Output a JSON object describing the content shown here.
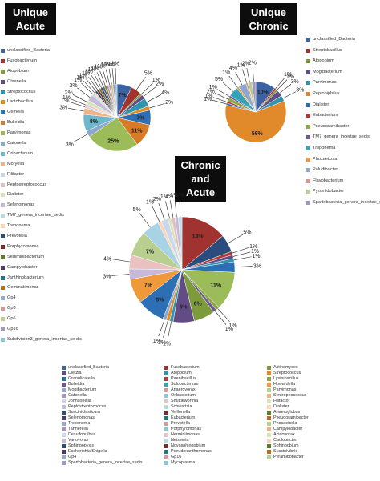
{
  "chart_data": [
    {
      "type": "pie",
      "title": "Unique Acute",
      "slices": [
        {
          "label": "unclassified_Bacteria",
          "value": 7,
          "text": "7%",
          "color": "#3b62a3"
        },
        {
          "label": "Fusobacterium",
          "value": 5,
          "text": "5%",
          "color": "#a0322f"
        },
        {
          "label": "Atopobium",
          "value": 1,
          "text": "1%",
          "color": "#7c9b3a"
        },
        {
          "label": "Olsenella",
          "value": 2,
          "text": "2%",
          "color": "#634b85"
        },
        {
          "label": "Streptococcus",
          "value": 4,
          "text": "4%",
          "color": "#2f95ad"
        },
        {
          "label": "Lactobacillus",
          "value": 2,
          "text": "2%",
          "color": "#e08a2c"
        },
        {
          "label": "Gemella",
          "value": 7,
          "text": "7%",
          "color": "#2d6fb4"
        },
        {
          "label": "Bulleidia",
          "value": 11,
          "text": "11%",
          "color": "#d87b27"
        },
        {
          "label": "Parvimonas",
          "value": 25,
          "text": "25%",
          "color": "#9cbc59"
        },
        {
          "label": "Catonella",
          "value": 3,
          "text": "3%",
          "color": "#8ea6c9"
        },
        {
          "label": "Oribacterium",
          "value": 8,
          "text": "8%",
          "color": "#6fb7cd"
        },
        {
          "label": "Moryella",
          "value": 3,
          "text": "3%",
          "color": "#f4b183"
        },
        {
          "label": "Filifactor",
          "value": 1,
          "text": "1%",
          "color": "#c8d7ec"
        },
        {
          "label": "Peptostreptococcus",
          "value": 1,
          "text": "1%",
          "color": "#e8c1c0"
        },
        {
          "label": "Dialister",
          "value": 2,
          "text": "2%",
          "color": "#d8e4bc"
        },
        {
          "label": "Selenomonas",
          "value": 3,
          "text": "3%",
          "color": "#c7b9da"
        },
        {
          "label": "TM7_genera_incertae_sedis",
          "value": 1,
          "text": "1%",
          "color": "#b6dde8"
        },
        {
          "label": "Treponema",
          "value": 1,
          "text": "1%",
          "color": "#fcd5b4"
        },
        {
          "label": "Prevotella",
          "value": 1,
          "text": "1%",
          "color": "#2a4d7e"
        },
        {
          "label": "Porphyromonas",
          "value": 1,
          "text": "1%",
          "color": "#7f2a27"
        },
        {
          "label": "Sediminibacterium",
          "value": 1,
          "text": "1%",
          "color": "#5e7a2c"
        },
        {
          "label": "Campylobacter",
          "value": 1,
          "text": "1%",
          "color": "#4c3a68"
        },
        {
          "label": "Janthinobacterium",
          "value": 1,
          "text": "1%",
          "color": "#257489"
        },
        {
          "label": "Gemmatimonas",
          "value": 1,
          "text": "1%",
          "color": "#b86d1f"
        },
        {
          "label": "Gp4",
          "value": 1,
          "text": "1%",
          "color": "#94a9cf"
        },
        {
          "label": "Gp3",
          "value": 1,
          "text": "1%",
          "color": "#d49a98"
        },
        {
          "label": "Gp6",
          "value": 1,
          "text": "1%",
          "color": "#b9cf8f"
        },
        {
          "label": "Gp16",
          "value": 1,
          "text": "1%",
          "color": "#a596bd"
        },
        {
          "label": "Subdivision3_genera_incertae_sedis",
          "value": 1,
          "text": "1%",
          "color": "#8fc6d6"
        }
      ]
    },
    {
      "type": "pie",
      "title": "Unique Chronic",
      "slices": [
        {
          "label": "unclassified_Bacteria",
          "value": 10,
          "text": "10%",
          "color": "#3b62a3"
        },
        {
          "label": "Streptobacillus",
          "value": 1,
          "text": "1%",
          "color": "#a0322f"
        },
        {
          "label": "Atopobium",
          "value": 1,
          "text": "1%",
          "color": "#7c9b3a"
        },
        {
          "label": "Mogibacterium",
          "value": 3,
          "text": "3%",
          "color": "#634b85"
        },
        {
          "label": "Parvimonas",
          "value": 3,
          "text": "3%",
          "color": "#2f95ad"
        },
        {
          "label": "Peptoniphilus",
          "value": 56,
          "text": "56%",
          "color": "#e08a2c"
        },
        {
          "label": "Dialister",
          "value": 1,
          "text": "1%",
          "color": "#2d6fb4"
        },
        {
          "label": "Eubacterium",
          "value": 1,
          "text": "1%",
          "color": "#b33a36"
        },
        {
          "label": "Pseudoramibacter",
          "value": 2,
          "text": "2%",
          "color": "#8aa944"
        },
        {
          "label": "TM7_genera_incertae_sedis",
          "value": 1,
          "text": "1%",
          "color": "#715796"
        },
        {
          "label": "Treponema",
          "value": 5,
          "text": "5%",
          "color": "#36a3bd"
        },
        {
          "label": "Phocaeicola",
          "value": 1,
          "text": "1%",
          "color": "#f0993a"
        },
        {
          "label": "Paludibacter",
          "value": 4,
          "text": "4%",
          "color": "#8ea6c9"
        },
        {
          "label": "Flavobacterium",
          "value": 1,
          "text": "1%",
          "color": "#d49a98"
        },
        {
          "label": "Pyramidobacter",
          "value": 2,
          "text": "2%",
          "color": "#b9cf8f"
        },
        {
          "label": "Spartobacteria_genera_incertae_sedis",
          "value": 2,
          "text": "2%",
          "color": "#a596bd"
        }
      ]
    },
    {
      "type": "pie",
      "title": "Chronic and Acute",
      "slices": [
        {
          "label": "unclassified_Bacteria",
          "value": 13,
          "text": "13%",
          "color": "#a0322f"
        },
        {
          "label": "Fusobacterium",
          "value": 5,
          "text": "5%",
          "color": "#2a4d7e"
        },
        {
          "label": "Actinomyces",
          "value": 1,
          "text": "1%",
          "color": "#b33a36"
        },
        {
          "label": "Dietzia",
          "value": 1,
          "text": "1%",
          "color": "#634b85"
        },
        {
          "label": "Atopobium",
          "value": 1,
          "text": "1%",
          "color": "#2f95ad"
        },
        {
          "label": "Streptococcus",
          "value": 3,
          "text": "3%",
          "color": "#2d6fb4"
        },
        {
          "label": "Granulicatella",
          "value": 11,
          "text": "11%",
          "color": "#9cbc59"
        },
        {
          "label": "Paenibacillus",
          "value": 1,
          "text": "1%",
          "color": "#8aa944"
        },
        {
          "label": "Lysinibacillus",
          "value": 1,
          "text": "1%",
          "color": "#715796"
        },
        {
          "label": "Bulleidia",
          "value": 6,
          "text": "6%",
          "color": "#7c9b3a"
        },
        {
          "label": "Solobacterium",
          "value": 6,
          "text": "6%",
          "color": "#634b85"
        },
        {
          "label": "Howardella",
          "value": 1,
          "text": "1%",
          "color": "#2f95ad"
        },
        {
          "label": "Mogibacterium",
          "value": 1,
          "text": "1%",
          "color": "#e08a2c"
        },
        {
          "label": "Anaerovorax",
          "value": 1,
          "text": "1%",
          "color": "#8ea6c9"
        },
        {
          "label": "Parvimonas",
          "value": 8,
          "text": "8%",
          "color": "#2d6fb4"
        },
        {
          "label": "Catonella",
          "value": 7,
          "text": "7%",
          "color": "#f0993a"
        },
        {
          "label": "Oribacterium",
          "value": 3,
          "text": "3%",
          "color": "#c7b9da"
        },
        {
          "label": "Syntrophococcus",
          "value": 4,
          "text": "4%",
          "color": "#e8c1c0"
        },
        {
          "label": "Johnsonella",
          "value": 7,
          "text": "7%",
          "color": "#b9cf8f"
        },
        {
          "label": "Shuttleworthia",
          "value": 5,
          "text": "5%",
          "color": "#a7d3e4"
        },
        {
          "label": "Filifactor",
          "value": 1,
          "text": "1%",
          "color": "#fcd5b4"
        },
        {
          "label": "Peptostreptococcus",
          "value": 2,
          "text": "2%",
          "color": "#c8d7ec"
        },
        {
          "label": "Schwartzia",
          "value": 1,
          "text": "1%",
          "color": "#d8e4bc"
        },
        {
          "label": "Dialister",
          "value": 1,
          "text": "1%",
          "color": "#e3c0bf"
        },
        {
          "label": "Succiniclasticum",
          "value": 1,
          "text": "1%",
          "color": "#c5bad7"
        },
        {
          "label": "Veillonella",
          "value": 1,
          "text": "1%",
          "color": "#b6dde8"
        }
      ]
    }
  ],
  "titles": {
    "unique_acute": [
      "Unique",
      "Acute"
    ],
    "unique_chronic": [
      "Unique",
      "Chronic"
    ],
    "chronic_acute": [
      "Chronic",
      "and",
      "Acute"
    ]
  },
  "legend_acute": [
    {
      "label": "unclassified_Bacteria",
      "color": "#3b62a3"
    },
    {
      "label": "Fusobacterium",
      "color": "#a0322f"
    },
    {
      "label": "Atopobium",
      "color": "#7c9b3a"
    },
    {
      "label": "Olsenella",
      "color": "#634b85"
    },
    {
      "label": "Streptococcus",
      "color": "#2f95ad"
    },
    {
      "label": "Lactobacillus",
      "color": "#e08a2c"
    },
    {
      "label": "Gemella",
      "color": "#2d6fb4"
    },
    {
      "label": "Bulleidia",
      "color": "#d87b27"
    },
    {
      "label": "Parvimonas",
      "color": "#9cbc59"
    },
    {
      "label": "Catonella",
      "color": "#8ea6c9"
    },
    {
      "label": "Oribacterium",
      "color": "#6fb7cd"
    },
    {
      "label": "Moryella",
      "color": "#f4b183"
    },
    {
      "label": "Filifactor",
      "color": "#c8d7ec"
    },
    {
      "label": "Peptostreptococcus",
      "color": "#e8c1c0"
    },
    {
      "label": "Dialister",
      "color": "#d8e4bc"
    },
    {
      "label": "Selenomonas",
      "color": "#c7b9da"
    },
    {
      "label": "TM7_genera_incertae_sedis",
      "color": "#b6dde8"
    },
    {
      "label": "Treponema",
      "color": "#fcd5b4"
    },
    {
      "label": "Prevotella",
      "color": "#2a4d7e"
    },
    {
      "label": "Porphyromonas",
      "color": "#7f2a27"
    },
    {
      "label": "Sediminibacterium",
      "color": "#5e7a2c"
    },
    {
      "label": "Campylobacter",
      "color": "#4c3a68"
    },
    {
      "label": "Janthinobacterium",
      "color": "#257489"
    },
    {
      "label": "Gemmatimonas",
      "color": "#b86d1f"
    },
    {
      "label": "Gp4",
      "color": "#94a9cf"
    },
    {
      "label": "Gp3",
      "color": "#d49a98"
    },
    {
      "label": "Gp6",
      "color": "#b9cf8f"
    },
    {
      "label": "Gp16",
      "color": "#a596bd"
    },
    {
      "label": "Subdivision3_genera_incertae_se dis",
      "color": "#8fc6d6"
    }
  ],
  "legend_chronic": [
    {
      "label": "unclassified_Bacteria",
      "color": "#3b62a3"
    },
    {
      "label": "Streptobacillus",
      "color": "#a0322f"
    },
    {
      "label": "Atopobium",
      "color": "#7c9b3a"
    },
    {
      "label": "Mogibacterium",
      "color": "#634b85"
    },
    {
      "label": "Parvimonas",
      "color": "#2f95ad"
    },
    {
      "label": "Peptoniphilus",
      "color": "#e08a2c"
    },
    {
      "label": "Dialister",
      "color": "#2d6fb4"
    },
    {
      "label": "Eubacterium",
      "color": "#b33a36"
    },
    {
      "label": "Pseudoramibacter",
      "color": "#8aa944"
    },
    {
      "label": "TM7_genera_incertae_sedis",
      "color": "#715796"
    },
    {
      "label": "Treponema",
      "color": "#36a3bd"
    },
    {
      "label": "Phocaeicola",
      "color": "#f0993a"
    },
    {
      "label": "Paludibacter",
      "color": "#8ea6c9"
    },
    {
      "label": "Flavobacterium",
      "color": "#d49a98"
    },
    {
      "label": "Pyramidobacter",
      "color": "#b9cf8f"
    },
    {
      "label": "Spartobacteria_genera_incertae_sedis",
      "color": "#a596bd"
    }
  ],
  "legend_bottom": [
    {
      "label": "unclassified_Bacteria",
      "color": "#3b62a3"
    },
    {
      "label": "Fusobacterium",
      "color": "#a0322f"
    },
    {
      "label": "Actinomyces",
      "color": "#7c9b3a"
    },
    {
      "label": "Dietzia",
      "color": "#634b85"
    },
    {
      "label": "Atopobium",
      "color": "#2f95ad"
    },
    {
      "label": "Streptococcus",
      "color": "#e08a2c"
    },
    {
      "label": "Granulicatella",
      "color": "#2d6fb4"
    },
    {
      "label": "Paenibacillus",
      "color": "#b33a36"
    },
    {
      "label": "Lysinibacillus",
      "color": "#8aa944"
    },
    {
      "label": "Bulleidia",
      "color": "#715796"
    },
    {
      "label": "Solobacterium",
      "color": "#36a3bd"
    },
    {
      "label": "Howardella",
      "color": "#f0993a"
    },
    {
      "label": "Mogibacterium",
      "color": "#8ea6c9"
    },
    {
      "label": "Anaerovorax",
      "color": "#d49a98"
    },
    {
      "label": "Parvimonas",
      "color": "#b9cf8f"
    },
    {
      "label": "Catonella",
      "color": "#a596bd"
    },
    {
      "label": "Oribacterium",
      "color": "#8fc6d6"
    },
    {
      "label": "Syntrophococcus",
      "color": "#f4b183"
    },
    {
      "label": "Johnsonella",
      "color": "#c8d7ec"
    },
    {
      "label": "Shuttleworthia",
      "color": "#e8c1c0"
    },
    {
      "label": "Filifactor",
      "color": "#d8e4bc"
    },
    {
      "label": "Peptostreptococcus",
      "color": "#c7b9da"
    },
    {
      "label": "Schwartzia",
      "color": "#b6dde8"
    },
    {
      "label": "Dialister",
      "color": "#fcd5b4"
    },
    {
      "label": "Succiniclasticum",
      "color": "#2a4d7e"
    },
    {
      "label": "Veillonella",
      "color": "#7f2a27"
    },
    {
      "label": "Anaeroglobus",
      "color": "#5e7a2c"
    },
    {
      "label": "Selenomonas",
      "color": "#4c3a68"
    },
    {
      "label": "Eubacterium",
      "color": "#257489"
    },
    {
      "label": "Pseudoramibacter",
      "color": "#b86d1f"
    },
    {
      "label": "Treponema",
      "color": "#94a9cf"
    },
    {
      "label": "Prevotella",
      "color": "#d49a98"
    },
    {
      "label": "Phocaeicola",
      "color": "#b9cf8f"
    },
    {
      "label": "Tannerella",
      "color": "#a596bd"
    },
    {
      "label": "Porphyromonas",
      "color": "#8fc6d6"
    },
    {
      "label": "Campylobacter",
      "color": "#f4b183"
    },
    {
      "label": "Desulfobulbus",
      "color": "#c8d7ec"
    },
    {
      "label": "Herminiimonas",
      "color": "#e8c1c0"
    },
    {
      "label": "Acidovorax",
      "color": "#d8e4bc"
    },
    {
      "label": "Variovorax",
      "color": "#c7b9da"
    },
    {
      "label": "Neisseria",
      "color": "#b6dde8"
    },
    {
      "label": "Caulobacter",
      "color": "#fcd5b4"
    },
    {
      "label": "Sphingopyxis",
      "color": "#2a4d7e"
    },
    {
      "label": "Novosphingobium",
      "color": "#7f2a27"
    },
    {
      "label": "Sphingobium",
      "color": "#5e7a2c"
    },
    {
      "label": "Escherichia/Shigella",
      "color": "#4c3a68"
    },
    {
      "label": "Pseudoxanthomonas",
      "color": "#257489"
    },
    {
      "label": "Succinivibrio",
      "color": "#b86d1f"
    },
    {
      "label": "Gp4",
      "color": "#94a9cf"
    },
    {
      "label": "Gp16",
      "color": "#d49a98"
    },
    {
      "label": "Pyramidobacter",
      "color": "#b9cf8f"
    },
    {
      "label": "Spartobacteria_genera_incertae_sedis",
      "color": "#a596bd"
    },
    {
      "label": "Mycoplasma",
      "color": "#8fc6d6"
    }
  ]
}
